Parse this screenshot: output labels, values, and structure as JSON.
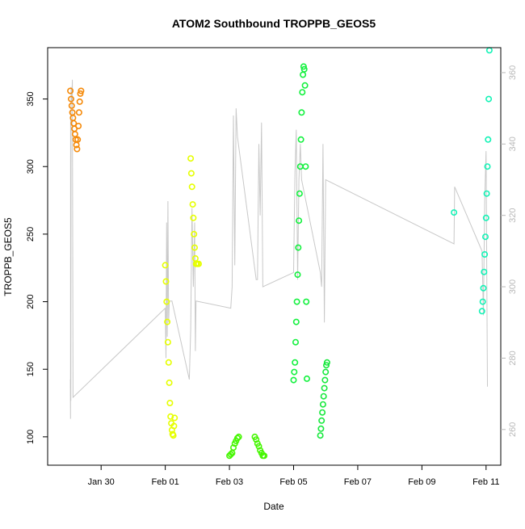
{
  "chart_data": {
    "type": "scatter",
    "title": "ATOM2 Southbound TROPPB_GEOS5",
    "xlabel": "Date",
    "ylabel": "TROPPB_GEOS5",
    "xlim": [
      "2017-01-28T08:00",
      "2017-02-11T11:00"
    ],
    "ylim": [
      79,
      388
    ],
    "y2lim": [
      250,
      367
    ],
    "x_ticks": [
      {
        "t": "2017-01-30",
        "label": "Jan 30"
      },
      {
        "t": "2017-02-01",
        "label": "Feb 01"
      },
      {
        "t": "2017-02-03",
        "label": "Feb 03"
      },
      {
        "t": "2017-02-05",
        "label": "Feb 05"
      },
      {
        "t": "2017-02-07",
        "label": "Feb 07"
      },
      {
        "t": "2017-02-09",
        "label": "Feb 09"
      },
      {
        "t": "2017-02-11",
        "label": "Feb 11"
      }
    ],
    "y_ticks": [
      100,
      150,
      200,
      250,
      300,
      350
    ],
    "y2_ticks": [
      260,
      280,
      300,
      320,
      340,
      360
    ],
    "gray_series": {
      "axis": "right",
      "color": "#c8c8c8",
      "x": [
        "2017-01-29T01:00",
        "2017-01-29T01:05",
        "2017-01-29T01:10",
        "2017-01-29T01:20",
        "2017-01-29T01:30",
        "2017-01-29T02:00",
        "2017-01-29T02:30",
        "2017-01-29T03:00",
        "2017-02-01T00:00",
        "2017-02-01T00:30",
        "2017-02-01T01:00",
        "2017-02-01T01:30",
        "2017-02-01T02:00",
        "2017-02-01T02:30",
        "2017-02-01T03:00",
        "2017-02-01T04:00",
        "2017-02-01T05:00",
        "2017-02-01T18:00",
        "2017-02-01T19:00",
        "2017-02-01T20:00",
        "2017-02-01T21:00",
        "2017-02-01T22:00",
        "2017-02-01T22:30",
        "2017-02-01T23:00",
        "2017-02-03T01:00",
        "2017-02-03T02:00",
        "2017-02-03T03:00",
        "2017-02-03T04:00",
        "2017-02-03T05:00",
        "2017-02-03T06:00",
        "2017-02-03T20:00",
        "2017-02-03T21:00",
        "2017-02-03T22:00",
        "2017-02-03T23:00",
        "2017-02-04T00:00",
        "2017-02-04T01:00",
        "2017-02-05T00:00",
        "2017-02-05T01:00",
        "2017-02-05T02:00",
        "2017-02-05T03:00",
        "2017-02-05T04:00",
        "2017-02-05T05:00",
        "2017-02-05T06:00",
        "2017-02-05T20:00",
        "2017-02-05T21:00",
        "2017-02-05T22:00",
        "2017-02-05T23:00",
        "2017-02-06T00:00",
        "2017-02-10T00:00",
        "2017-02-10T00:30",
        "2017-02-10T21:00",
        "2017-02-10T22:00",
        "2017-02-10T23:00",
        "2017-02-11T00:00",
        "2017-02-11T01:00"
      ],
      "y": [
        274,
        263,
        348,
        268,
        356,
        352,
        358,
        269,
        294,
        280,
        318,
        286,
        324,
        290,
        296,
        296,
        296,
        274,
        288,
        322,
        300,
        318,
        282,
        296,
        294,
        300,
        348,
        306,
        350,
        342,
        302,
        302,
        340,
        320,
        346,
        300,
        304,
        332,
        344,
        302,
        330,
        340,
        330,
        304,
        300,
        340,
        290,
        330,
        312,
        328,
        310,
        292,
        324,
        338,
        272
      ]
    },
    "series": [
      {
        "color": "#f58a0a",
        "x": [
          "2017-01-29T01:00",
          "2017-01-29T01:30",
          "2017-01-29T02:00",
          "2017-01-29T02:30",
          "2017-01-29T03:00",
          "2017-01-29T03:30",
          "2017-01-29T04:00",
          "2017-01-29T04:30",
          "2017-01-29T05:00",
          "2017-01-29T05:30",
          "2017-01-29T06:00",
          "2017-01-29T06:30",
          "2017-01-29T07:00",
          "2017-01-29T07:30",
          "2017-01-29T08:00",
          "2017-01-29T08:30",
          "2017-01-29T09:00"
        ],
        "y": [
          356,
          350,
          345,
          340,
          336,
          332,
          328,
          324,
          320,
          316,
          313,
          320,
          330,
          340,
          348,
          354,
          356
        ]
      },
      {
        "color": "#e6ff00",
        "x": [
          "2017-02-01T00:00",
          "2017-02-01T00:30",
          "2017-02-01T01:00",
          "2017-02-01T01:30",
          "2017-02-01T02:00",
          "2017-02-01T02:30",
          "2017-02-01T03:00",
          "2017-02-01T03:30",
          "2017-02-01T04:00",
          "2017-02-01T04:30",
          "2017-02-01T05:00",
          "2017-02-01T05:30",
          "2017-02-01T06:00",
          "2017-02-01T06:30",
          "2017-02-01T07:00",
          "2017-02-01T19:00",
          "2017-02-01T19:30",
          "2017-02-01T20:00",
          "2017-02-01T20:30",
          "2017-02-01T21:00",
          "2017-02-01T21:30",
          "2017-02-01T22:00",
          "2017-02-01T22:30",
          "2017-02-01T23:00",
          "2017-02-02T00:00",
          "2017-02-02T01:00"
        ],
        "y": [
          227,
          215,
          200,
          185,
          170,
          155,
          140,
          125,
          115,
          110,
          105,
          102,
          101,
          108,
          114,
          306,
          295,
          285,
          272,
          262,
          250,
          240,
          232,
          228,
          228,
          228
        ]
      },
      {
        "color": "#44f600",
        "x": [
          "2017-02-03T00:00",
          "2017-02-03T01:00",
          "2017-02-03T02:00",
          "2017-02-03T03:00",
          "2017-02-03T04:00",
          "2017-02-03T05:00",
          "2017-02-03T06:00",
          "2017-02-03T07:00",
          "2017-02-03T19:00",
          "2017-02-03T20:00",
          "2017-02-03T21:00",
          "2017-02-03T22:00",
          "2017-02-03T23:00",
          "2017-02-04T00:00",
          "2017-02-04T01:00",
          "2017-02-04T02:00"
        ],
        "y": [
          86,
          87,
          88,
          92,
          95,
          97,
          99,
          100,
          100,
          98,
          95,
          93,
          90,
          88,
          86,
          86
        ]
      },
      {
        "color": "#13f13e",
        "x": [
          "2017-02-05T00:00",
          "2017-02-05T00:30",
          "2017-02-05T01:00",
          "2017-02-05T01:30",
          "2017-02-05T02:00",
          "2017-02-05T02:30",
          "2017-02-05T03:00",
          "2017-02-05T03:30",
          "2017-02-05T04:00",
          "2017-02-05T04:30",
          "2017-02-05T05:00",
          "2017-02-05T05:30",
          "2017-02-05T06:00",
          "2017-02-05T06:30",
          "2017-02-05T07:00",
          "2017-02-05T07:30",
          "2017-02-05T08:00",
          "2017-02-05T08:30",
          "2017-02-05T09:00",
          "2017-02-05T09:30",
          "2017-02-05T10:00"
        ],
        "y": [
          142,
          148,
          155,
          170,
          185,
          200,
          220,
          240,
          260,
          280,
          300,
          320,
          340,
          355,
          368,
          374,
          372,
          360,
          300,
          200,
          143
        ]
      },
      {
        "color": "#17e93d",
        "x": [
          "2017-02-05T20:00",
          "2017-02-05T20:30",
          "2017-02-05T21:00",
          "2017-02-05T21:30",
          "2017-02-05T22:00",
          "2017-02-05T22:30",
          "2017-02-05T23:00",
          "2017-02-05T23:30",
          "2017-02-06T00:00",
          "2017-02-06T00:30",
          "2017-02-06T01:00"
        ],
        "y": [
          101,
          106,
          112,
          118,
          124,
          130,
          136,
          142,
          148,
          153,
          155
        ]
      },
      {
        "color": "#13f3b6",
        "x": [
          "2017-02-10T00:00",
          "2017-02-10T21:00",
          "2017-02-10T21:30",
          "2017-02-10T22:00",
          "2017-02-10T22:30",
          "2017-02-10T23:00",
          "2017-02-10T23:30",
          "2017-02-11T00:00",
          "2017-02-11T00:30",
          "2017-02-11T01:00",
          "2017-02-11T01:30",
          "2017-02-11T02:00",
          "2017-02-11T02:30"
        ],
        "y": [
          266,
          193,
          200,
          210,
          222,
          235,
          248,
          262,
          280,
          300,
          320,
          350,
          386
        ]
      }
    ]
  }
}
